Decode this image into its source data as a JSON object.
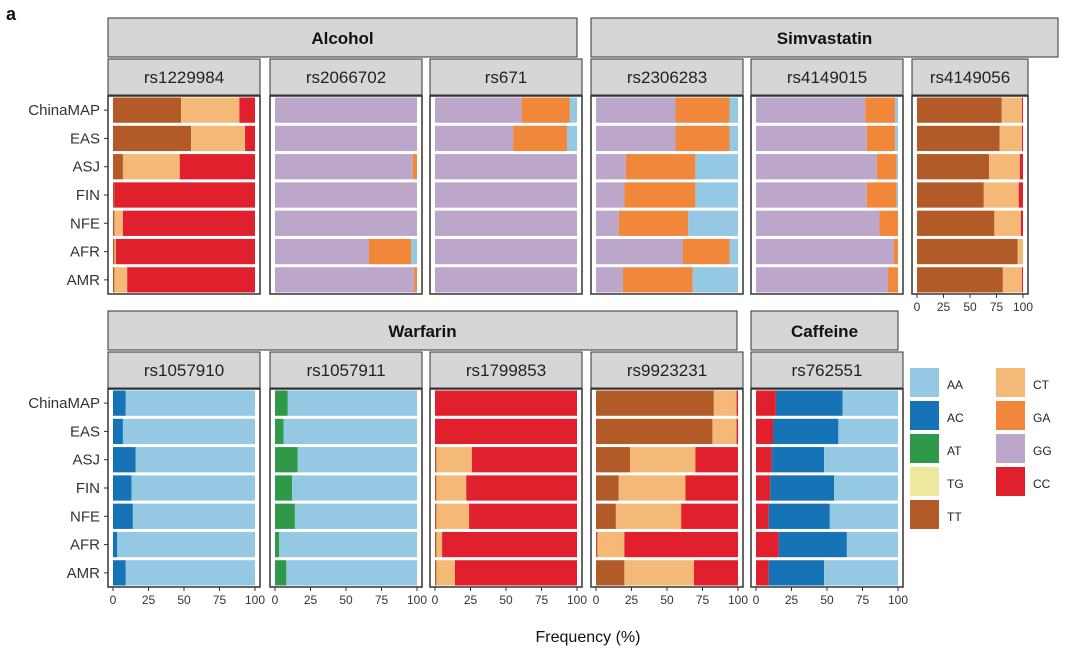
{
  "figure": {
    "panel_label": "a"
  },
  "chart_data": {
    "type": "bar",
    "orientation": "horizontal-stacked",
    "xlabel": "Frequency (%)",
    "xlim": [
      0,
      100
    ],
    "xticks": [
      "0",
      "25",
      "50",
      "75",
      "100"
    ],
    "populations": [
      "ChinaMAP",
      "EAS",
      "ASJ",
      "FIN",
      "NFE",
      "AFR",
      "AMR"
    ],
    "colors": {
      "AA": "#94c8e3",
      "AC": "#1673b5",
      "AT": "#2e9a49",
      "TG": "#ece89e",
      "TT": "#b25b28",
      "CT": "#f5b977",
      "GA": "#f0873a",
      "GG": "#bca7cb",
      "CC": "#e1202e"
    },
    "legend": [
      [
        "AA",
        "AC",
        "AT",
        "TG",
        "TT"
      ],
      [
        "CT",
        "GA",
        "GG",
        "CC"
      ]
    ],
    "groups": [
      {
        "title": "Alcohol",
        "snps": [
          "rs1229984",
          "rs2066702",
          "rs671"
        ]
      },
      {
        "title": "Simvastatin",
        "snps": [
          "rs2306283",
          "rs4149015",
          "rs4149056"
        ]
      },
      {
        "title": "Warfarin",
        "snps": [
          "rs1057910",
          "rs1057911",
          "rs1799853",
          "rs9923231"
        ]
      },
      {
        "title": "Caffeine",
        "snps": [
          "rs762551"
        ]
      }
    ],
    "panels": [
      {
        "snp": "rs1229984",
        "genotypes": [
          "TT",
          "CT",
          "CC"
        ],
        "values": [
          [
            48,
            41,
            11
          ],
          [
            55,
            38,
            7
          ],
          [
            7,
            40,
            53
          ],
          [
            1,
            0,
            99
          ],
          [
            1,
            6,
            93
          ],
          [
            1,
            1,
            98
          ],
          [
            1,
            9,
            90
          ]
        ]
      },
      {
        "snp": "rs2066702",
        "genotypes": [
          "GG",
          "GA",
          "AA"
        ],
        "values": [
          [
            100,
            0,
            0
          ],
          [
            100,
            0,
            0
          ],
          [
            97,
            3,
            0
          ],
          [
            100,
            0,
            0
          ],
          [
            100,
            0,
            0
          ],
          [
            66,
            30,
            4
          ],
          [
            98,
            2,
            0
          ]
        ]
      },
      {
        "snp": "rs671",
        "genotypes": [
          "GG",
          "GA",
          "AA"
        ],
        "values": [
          [
            61,
            34,
            5
          ],
          [
            55,
            38,
            7
          ],
          [
            100,
            0,
            0
          ],
          [
            100,
            0,
            0
          ],
          [
            100,
            0,
            0
          ],
          [
            100,
            0,
            0
          ],
          [
            100,
            0,
            0
          ]
        ]
      },
      {
        "snp": "rs2306283",
        "genotypes": [
          "GG",
          "GA",
          "AA"
        ],
        "values": [
          [
            56,
            38,
            6
          ],
          [
            56,
            38,
            6
          ],
          [
            21,
            49,
            30
          ],
          [
            20,
            50,
            30
          ],
          [
            16,
            49,
            35
          ],
          [
            61,
            33,
            6
          ],
          [
            19,
            49,
            32
          ]
        ]
      },
      {
        "snp": "rs4149015",
        "genotypes": [
          "GG",
          "GA",
          "AA"
        ],
        "values": [
          [
            77,
            21,
            2
          ],
          [
            78,
            20,
            2
          ],
          [
            85,
            14,
            1
          ],
          [
            78,
            21,
            1
          ],
          [
            87,
            13,
            0
          ],
          [
            97,
            3,
            0
          ],
          [
            93,
            7,
            0
          ]
        ]
      },
      {
        "snp": "rs4149056",
        "genotypes": [
          "TT",
          "CT",
          "CC"
        ],
        "values": [
          [
            80,
            19,
            1
          ],
          [
            78,
            21,
            1
          ],
          [
            68,
            29,
            3
          ],
          [
            63,
            33,
            4
          ],
          [
            73,
            25,
            2
          ],
          [
            95,
            5,
            0
          ],
          [
            81,
            18,
            1
          ]
        ]
      },
      {
        "snp": "rs1057910",
        "genotypes": [
          "AC",
          "AA"
        ],
        "values": [
          [
            9,
            91
          ],
          [
            7,
            93
          ],
          [
            16,
            84
          ],
          [
            13,
            87
          ],
          [
            14,
            86
          ],
          [
            3,
            97
          ],
          [
            9,
            91
          ]
        ]
      },
      {
        "snp": "rs1057911",
        "genotypes": [
          "AT",
          "AA"
        ],
        "values": [
          [
            9,
            91
          ],
          [
            6,
            94
          ],
          [
            16,
            84
          ],
          [
            12,
            88
          ],
          [
            14,
            86
          ],
          [
            3,
            97
          ],
          [
            8,
            92
          ]
        ]
      },
      {
        "snp": "rs1799853",
        "genotypes": [
          "TT",
          "CT",
          "CC"
        ],
        "values": [
          [
            0,
            0,
            100
          ],
          [
            0,
            0,
            100
          ],
          [
            1,
            25,
            74
          ],
          [
            1,
            21,
            78
          ],
          [
            1,
            23,
            76
          ],
          [
            1,
            4,
            95
          ],
          [
            1,
            13,
            86
          ]
        ]
      },
      {
        "snp": "rs9923231",
        "genotypes": [
          "TT",
          "CT",
          "CC"
        ],
        "values": [
          [
            83,
            16,
            1
          ],
          [
            82,
            17,
            1
          ],
          [
            24,
            46,
            30
          ],
          [
            16,
            47,
            37
          ],
          [
            14,
            46,
            40
          ],
          [
            1,
            19,
            80
          ],
          [
            20,
            49,
            31
          ]
        ]
      },
      {
        "snp": "rs762551",
        "genotypes": [
          "CC",
          "AC",
          "AA"
        ],
        "values": [
          [
            14,
            47,
            39
          ],
          [
            12,
            46,
            42
          ],
          [
            11,
            37,
            52
          ],
          [
            10,
            45,
            45
          ],
          [
            9,
            43,
            48
          ],
          [
            16,
            48,
            36
          ],
          [
            9,
            39,
            52
          ]
        ]
      }
    ]
  }
}
